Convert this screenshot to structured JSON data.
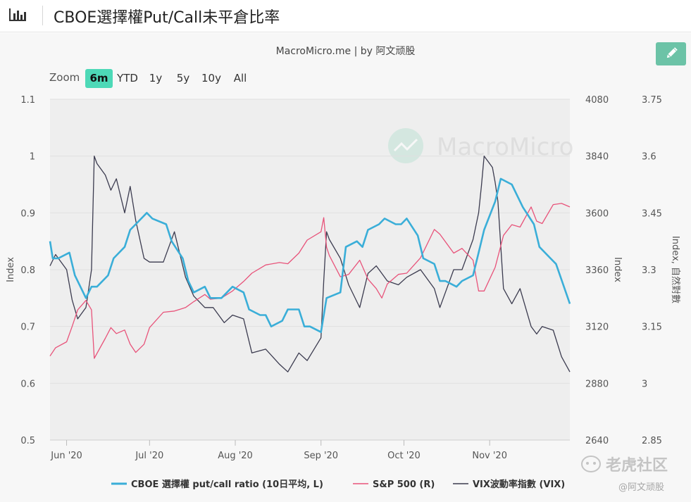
{
  "header": {
    "title": "CBOE選擇權Put/Call未平倉比率",
    "chart_icon": "bar-chart-icon"
  },
  "credit": "MacroMicro.me | by 阿文顽股",
  "edit_button": {
    "icon": "pencil-icon"
  },
  "zoom": {
    "label": "Zoom",
    "buttons": [
      "6m",
      "YTD",
      "1y",
      "5y",
      "10y",
      "All"
    ],
    "active": "6m"
  },
  "watermark": {
    "center": "MacroMicro",
    "corner_top": "老虎社区",
    "corner_bottom": "@阿文顽股"
  },
  "chart_data": {
    "type": "line",
    "x_ticks": [
      "Jun '20",
      "Jul '20",
      "Aug '20",
      "Sep '20",
      "Oct '20",
      "Nov '20"
    ],
    "axes": {
      "left": {
        "label": "Index",
        "ylim": [
          0.5,
          1.1
        ],
        "ticks": [
          "1.1",
          "1",
          "0.9",
          "0.8",
          "0.7",
          "0.6",
          "0.5"
        ]
      },
      "right1": {
        "label": "Index",
        "ylim": [
          2640,
          4080
        ],
        "ticks": [
          "4080",
          "3840",
          "3600",
          "3360",
          "3120",
          "2880",
          "2640"
        ]
      },
      "right2": {
        "label": "Index, 自然對數",
        "ylim": [
          2.85,
          3.75
        ],
        "ticks": [
          "3.75",
          "3.6",
          "3.45",
          "3.3",
          "3.15",
          "3",
          "2.85"
        ]
      }
    },
    "x_range": [
      "2020-05-26",
      "2020-11-30"
    ],
    "colors": {
      "pcr": "#3aaed8",
      "spx": "#e8537a",
      "vix": "#3b3b4f",
      "plot_bg": "#eeeeee",
      "grid": "#e0e0e0"
    },
    "series": [
      {
        "name": "CBOE 選擇權 put/call ratio (10日平均, L)",
        "axis": "left",
        "color": "#3aaed8",
        "x": [
          "2020-05-26",
          "2020-05-27",
          "2020-05-29",
          "2020-06-02",
          "2020-06-04",
          "2020-06-08",
          "2020-06-10",
          "2020-06-12",
          "2020-06-16",
          "2020-06-18",
          "2020-06-22",
          "2020-06-24",
          "2020-06-26",
          "2020-06-30",
          "2020-07-02",
          "2020-07-07",
          "2020-07-09",
          "2020-07-13",
          "2020-07-15",
          "2020-07-17",
          "2020-07-21",
          "2020-07-23",
          "2020-07-27",
          "2020-07-29",
          "2020-07-31",
          "2020-08-04",
          "2020-08-06",
          "2020-08-10",
          "2020-08-12",
          "2020-08-14",
          "2020-08-18",
          "2020-08-20",
          "2020-08-24",
          "2020-08-26",
          "2020-08-28",
          "2020-09-01",
          "2020-09-03",
          "2020-09-08",
          "2020-09-10",
          "2020-09-14",
          "2020-09-16",
          "2020-09-18",
          "2020-09-22",
          "2020-09-24",
          "2020-09-28",
          "2020-09-30",
          "2020-10-02",
          "2020-10-06",
          "2020-10-08",
          "2020-10-12",
          "2020-10-14",
          "2020-10-16",
          "2020-10-20",
          "2020-10-22",
          "2020-10-26",
          "2020-10-28",
          "2020-10-30",
          "2020-11-03",
          "2020-11-05",
          "2020-11-09",
          "2020-11-11",
          "2020-11-13",
          "2020-11-17",
          "2020-11-19",
          "2020-11-23",
          "2020-11-25",
          "2020-11-30"
        ],
        "values": [
          0.85,
          0.82,
          0.82,
          0.83,
          0.79,
          0.75,
          0.77,
          0.77,
          0.79,
          0.82,
          0.84,
          0.87,
          0.88,
          0.9,
          0.89,
          0.88,
          0.85,
          0.82,
          0.78,
          0.76,
          0.77,
          0.75,
          0.75,
          0.76,
          0.77,
          0.76,
          0.73,
          0.72,
          0.72,
          0.7,
          0.71,
          0.73,
          0.73,
          0.7,
          0.7,
          0.69,
          0.75,
          0.76,
          0.84,
          0.85,
          0.84,
          0.87,
          0.88,
          0.89,
          0.88,
          0.88,
          0.89,
          0.86,
          0.82,
          0.81,
          0.78,
          0.78,
          0.77,
          0.78,
          0.79,
          0.83,
          0.87,
          0.92,
          0.96,
          0.95,
          0.93,
          0.91,
          0.88,
          0.84,
          0.82,
          0.81,
          0.74
        ]
      },
      {
        "name": "S&P 500 (R)",
        "axis": "right1",
        "color": "#e8537a",
        "x": [
          "2020-05-26",
          "2020-05-28",
          "2020-06-01",
          "2020-06-03",
          "2020-06-05",
          "2020-06-08",
          "2020-06-10",
          "2020-06-11",
          "2020-06-15",
          "2020-06-17",
          "2020-06-19",
          "2020-06-22",
          "2020-06-24",
          "2020-06-26",
          "2020-06-29",
          "2020-07-01",
          "2020-07-06",
          "2020-07-10",
          "2020-07-14",
          "2020-07-17",
          "2020-07-21",
          "2020-07-23",
          "2020-07-27",
          "2020-07-31",
          "2020-08-04",
          "2020-08-07",
          "2020-08-12",
          "2020-08-17",
          "2020-08-20",
          "2020-08-24",
          "2020-08-27",
          "2020-09-01",
          "2020-09-02",
          "2020-09-03",
          "2020-09-04",
          "2020-09-08",
          "2020-09-11",
          "2020-09-15",
          "2020-09-18",
          "2020-09-21",
          "2020-09-23",
          "2020-09-25",
          "2020-09-29",
          "2020-10-02",
          "2020-10-07",
          "2020-10-12",
          "2020-10-14",
          "2020-10-19",
          "2020-10-22",
          "2020-10-26",
          "2020-10-28",
          "2020-10-30",
          "2020-11-03",
          "2020-11-06",
          "2020-11-09",
          "2020-11-12",
          "2020-11-16",
          "2020-11-18",
          "2020-11-20",
          "2020-11-24",
          "2020-11-27",
          "2020-11-30"
        ],
        "values": [
          2995,
          3030,
          3055,
          3120,
          3190,
          3230,
          3190,
          2985,
          3070,
          3115,
          3090,
          3105,
          3045,
          3010,
          3045,
          3115,
          3180,
          3185,
          3200,
          3225,
          3255,
          3235,
          3240,
          3270,
          3310,
          3345,
          3380,
          3390,
          3385,
          3430,
          3485,
          3520,
          3580,
          3455,
          3420,
          3330,
          3340,
          3400,
          3320,
          3280,
          3240,
          3300,
          3340,
          3345,
          3410,
          3530,
          3510,
          3430,
          3450,
          3400,
          3270,
          3270,
          3370,
          3505,
          3550,
          3540,
          3625,
          3565,
          3555,
          3635,
          3640,
          3625
        ]
      },
      {
        "name": "VIX波動率指數 (VIX)",
        "axis": "right2",
        "color": "#3b3b4f",
        "x": [
          "2020-05-26",
          "2020-05-28",
          "2020-06-01",
          "2020-06-03",
          "2020-06-05",
          "2020-06-08",
          "2020-06-10",
          "2020-06-11",
          "2020-06-12",
          "2020-06-15",
          "2020-06-17",
          "2020-06-19",
          "2020-06-22",
          "2020-06-24",
          "2020-06-26",
          "2020-06-29",
          "2020-07-01",
          "2020-07-06",
          "2020-07-10",
          "2020-07-14",
          "2020-07-17",
          "2020-07-21",
          "2020-07-24",
          "2020-07-28",
          "2020-07-31",
          "2020-08-04",
          "2020-08-07",
          "2020-08-12",
          "2020-08-17",
          "2020-08-20",
          "2020-08-24",
          "2020-08-27",
          "2020-09-01",
          "2020-09-02",
          "2020-09-03",
          "2020-09-04",
          "2020-09-08",
          "2020-09-11",
          "2020-09-15",
          "2020-09-18",
          "2020-09-21",
          "2020-09-23",
          "2020-09-25",
          "2020-09-29",
          "2020-10-02",
          "2020-10-07",
          "2020-10-12",
          "2020-10-14",
          "2020-10-19",
          "2020-10-22",
          "2020-10-26",
          "2020-10-28",
          "2020-10-29",
          "2020-10-30",
          "2020-11-02",
          "2020-11-03",
          "2020-11-04",
          "2020-11-06",
          "2020-11-09",
          "2020-11-12",
          "2020-11-16",
          "2020-11-18",
          "2020-11-20",
          "2020-11-24",
          "2020-11-27",
          "2020-11-30"
        ],
        "values": [
          3.31,
          3.34,
          3.3,
          3.22,
          3.17,
          3.2,
          3.3,
          3.6,
          3.58,
          3.55,
          3.51,
          3.54,
          3.45,
          3.52,
          3.43,
          3.33,
          3.32,
          3.32,
          3.4,
          3.28,
          3.23,
          3.2,
          3.2,
          3.16,
          3.18,
          3.17,
          3.08,
          3.09,
          3.05,
          3.03,
          3.08,
          3.06,
          3.12,
          3.27,
          3.4,
          3.38,
          3.33,
          3.26,
          3.2,
          3.29,
          3.31,
          3.29,
          3.27,
          3.26,
          3.28,
          3.3,
          3.25,
          3.2,
          3.3,
          3.3,
          3.38,
          3.45,
          3.52,
          3.6,
          3.57,
          3.53,
          3.48,
          3.25,
          3.21,
          3.25,
          3.15,
          3.13,
          3.15,
          3.14,
          3.07,
          3.03
        ]
      }
    ]
  }
}
